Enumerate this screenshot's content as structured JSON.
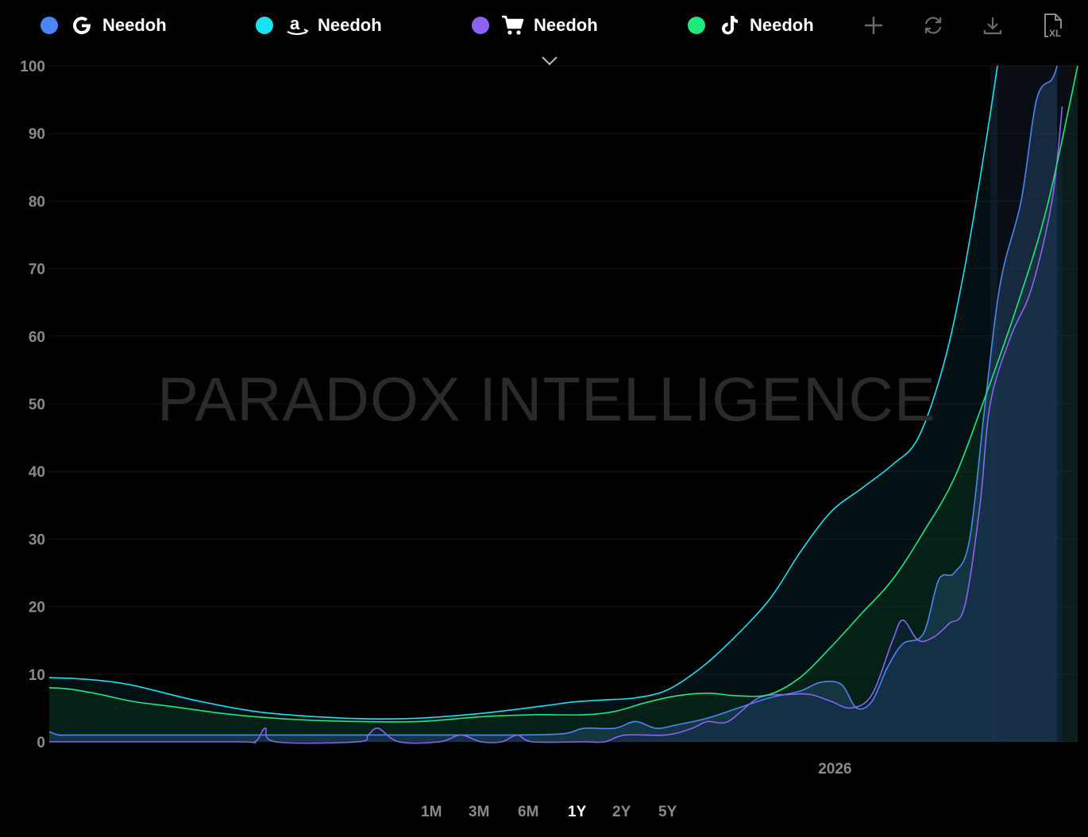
{
  "legend": [
    {
      "label": "Needoh",
      "color": "#4c86f5",
      "icon": "google-icon"
    },
    {
      "label": "Needoh",
      "color": "#19e3f3",
      "icon": "amazon-icon"
    },
    {
      "label": "Needoh",
      "color": "#8b63f5",
      "icon": "shopping-cart-icon"
    },
    {
      "label": "Needoh",
      "color": "#1ee87e",
      "icon": "tiktok-icon"
    }
  ],
  "toolbar": [
    "add-icon",
    "refresh-icon",
    "download-icon",
    "export-xl-icon"
  ],
  "watermark": "PARADOX INTELLIGENCE",
  "ranges": [
    "1M",
    "3M",
    "6M",
    "1Y",
    "2Y",
    "5Y"
  ],
  "active_range": "1Y",
  "chart_data": {
    "type": "area",
    "ylim": [
      0,
      100
    ],
    "yticks": [
      0,
      10,
      20,
      30,
      40,
      50,
      60,
      70,
      80,
      90,
      100
    ],
    "xtick_labels": [
      {
        "label": "2026",
        "x": 0.764
      }
    ],
    "grid": true,
    "series": [
      {
        "name": "Needoh",
        "source": "google",
        "color": "#4c86f5",
        "fill": "rgba(40,80,120,0.45)",
        "points": [
          [
            0,
            1.5
          ],
          [
            0.01,
            1
          ],
          [
            0.03,
            1
          ],
          [
            0.2,
            1
          ],
          [
            0.3,
            1
          ],
          [
            0.4,
            1
          ],
          [
            0.45,
            1
          ],
          [
            0.5,
            1.2
          ],
          [
            0.52,
            2
          ],
          [
            0.55,
            2
          ],
          [
            0.57,
            3
          ],
          [
            0.59,
            2
          ],
          [
            0.61,
            2.5
          ],
          [
            0.64,
            3.5
          ],
          [
            0.67,
            5
          ],
          [
            0.7,
            6.5
          ],
          [
            0.73,
            7.5
          ],
          [
            0.75,
            8.8
          ],
          [
            0.77,
            8.5
          ],
          [
            0.785,
            5
          ],
          [
            0.8,
            6
          ],
          [
            0.815,
            11
          ],
          [
            0.83,
            14.5
          ],
          [
            0.85,
            16
          ],
          [
            0.865,
            24
          ],
          [
            0.88,
            25
          ],
          [
            0.895,
            30
          ],
          [
            0.91,
            50
          ],
          [
            0.925,
            68
          ],
          [
            0.945,
            80
          ],
          [
            0.96,
            95
          ],
          [
            0.975,
            98
          ],
          [
            0.98,
            100
          ]
        ]
      },
      {
        "name": "Needoh",
        "source": "amazon",
        "color": "#19e3f3",
        "fill": "rgba(10,50,60,0.35)",
        "points": [
          [
            0,
            9.5
          ],
          [
            0.04,
            9.2
          ],
          [
            0.08,
            8.4
          ],
          [
            0.14,
            6.2
          ],
          [
            0.2,
            4.5
          ],
          [
            0.26,
            3.7
          ],
          [
            0.31,
            3.4
          ],
          [
            0.36,
            3.5
          ],
          [
            0.42,
            4.2
          ],
          [
            0.48,
            5.3
          ],
          [
            0.51,
            5.9
          ],
          [
            0.54,
            6.2
          ],
          [
            0.57,
            6.5
          ],
          [
            0.6,
            7.6
          ],
          [
            0.63,
            10.5
          ],
          [
            0.66,
            14.5
          ],
          [
            0.7,
            21
          ],
          [
            0.73,
            28
          ],
          [
            0.76,
            34
          ],
          [
            0.79,
            37.5
          ],
          [
            0.82,
            41
          ],
          [
            0.845,
            45
          ],
          [
            0.87,
            56
          ],
          [
            0.89,
            70
          ],
          [
            0.91,
            88
          ],
          [
            0.922,
            100
          ]
        ]
      },
      {
        "name": "Needoh",
        "source": "shopping",
        "color": "#8b63f5",
        "fill": "rgba(20,40,80,0.35)",
        "points": [
          [
            0,
            0
          ],
          [
            0.18,
            0
          ],
          [
            0.2,
            0
          ],
          [
            0.21,
            2
          ],
          [
            0.22,
            0
          ],
          [
            0.3,
            0
          ],
          [
            0.31,
            1
          ],
          [
            0.32,
            2
          ],
          [
            0.34,
            0
          ],
          [
            0.38,
            0
          ],
          [
            0.4,
            1
          ],
          [
            0.42,
            0
          ],
          [
            0.44,
            0
          ],
          [
            0.455,
            1
          ],
          [
            0.47,
            0
          ],
          [
            0.52,
            0
          ],
          [
            0.54,
            0
          ],
          [
            0.56,
            1
          ],
          [
            0.6,
            1
          ],
          [
            0.625,
            2
          ],
          [
            0.64,
            3
          ],
          [
            0.66,
            3
          ],
          [
            0.69,
            6.5
          ],
          [
            0.72,
            7
          ],
          [
            0.74,
            7
          ],
          [
            0.76,
            6
          ],
          [
            0.78,
            5
          ],
          [
            0.8,
            7
          ],
          [
            0.82,
            15
          ],
          [
            0.83,
            18
          ],
          [
            0.845,
            15
          ],
          [
            0.86,
            15.5
          ],
          [
            0.875,
            17.5
          ],
          [
            0.89,
            20
          ],
          [
            0.905,
            35
          ],
          [
            0.915,
            50
          ],
          [
            0.935,
            60
          ],
          [
            0.955,
            67
          ],
          [
            0.975,
            80
          ],
          [
            0.985,
            94
          ]
        ]
      },
      {
        "name": "Needoh",
        "source": "tiktok",
        "color": "#1ee87e",
        "fill": "rgba(10,60,30,0.35)",
        "points": [
          [
            0,
            8
          ],
          [
            0.02,
            7.8
          ],
          [
            0.05,
            7
          ],
          [
            0.08,
            6
          ],
          [
            0.12,
            5.2
          ],
          [
            0.18,
            4
          ],
          [
            0.24,
            3.3
          ],
          [
            0.3,
            3
          ],
          [
            0.36,
            3
          ],
          [
            0.42,
            3.7
          ],
          [
            0.47,
            4
          ],
          [
            0.52,
            4
          ],
          [
            0.55,
            4.5
          ],
          [
            0.58,
            5.8
          ],
          [
            0.61,
            6.8
          ],
          [
            0.64,
            7.2
          ],
          [
            0.67,
            6.8
          ],
          [
            0.7,
            7
          ],
          [
            0.73,
            9.5
          ],
          [
            0.76,
            14
          ],
          [
            0.79,
            19
          ],
          [
            0.82,
            24
          ],
          [
            0.85,
            31
          ],
          [
            0.88,
            39
          ],
          [
            0.91,
            51
          ],
          [
            0.94,
            64
          ],
          [
            0.97,
            79
          ],
          [
            1,
            100
          ]
        ]
      }
    ]
  }
}
